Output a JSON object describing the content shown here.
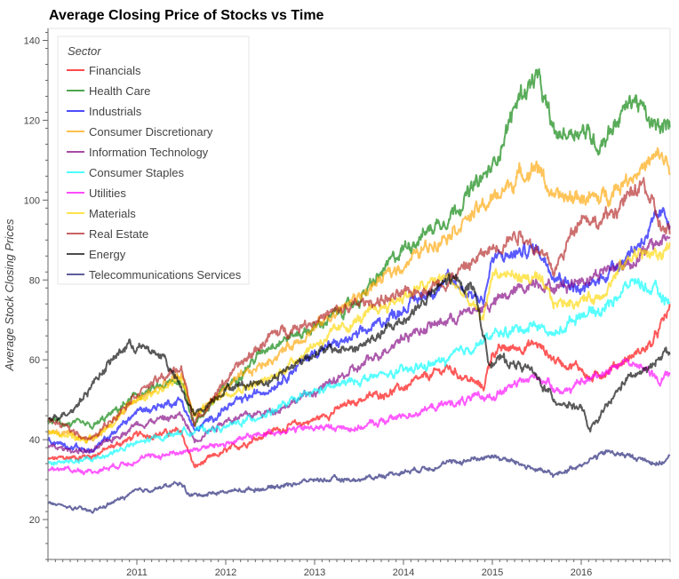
{
  "chart_data": {
    "type": "line",
    "title": "Average Closing Price of Stocks vs Time",
    "xlabel": "",
    "ylabel": "Average Stock Closing Prices",
    "xlim": [
      2010.0,
      2017.0
    ],
    "ylim": [
      10,
      143
    ],
    "x_ticks": [
      "2011",
      "2012",
      "2013",
      "2014",
      "2015",
      "2016"
    ],
    "y_ticks": [
      20,
      40,
      60,
      80,
      100,
      120,
      140
    ],
    "grid": false,
    "legend": {
      "title": "Sector",
      "placement": "top-left"
    },
    "series": [
      {
        "name": "Financials",
        "color": "#ff0000",
        "x": [
          2010.0,
          2010.5,
          2011.0,
          2011.5,
          2011.65,
          2011.8,
          2012.0,
          2012.5,
          2013.0,
          2013.5,
          2014.0,
          2014.5,
          2014.9,
          2015.0,
          2015.5,
          2015.7,
          2016.0,
          2016.1,
          2016.5,
          2016.8,
          2017.0
        ],
        "values": [
          35,
          36,
          41,
          42,
          33,
          35,
          37,
          42,
          45,
          50,
          53,
          58,
          53,
          62,
          64,
          60,
          58,
          55,
          60,
          64,
          73
        ]
      },
      {
        "name": "Health Care",
        "color": "#008000",
        "x": [
          2010.0,
          2010.5,
          2011.0,
          2011.5,
          2011.65,
          2012.0,
          2012.5,
          2013.0,
          2013.5,
          2014.0,
          2014.5,
          2015.0,
          2015.3,
          2015.5,
          2015.7,
          2016.0,
          2016.2,
          2016.6,
          2016.8,
          2017.0
        ],
        "values": [
          45,
          43,
          51,
          55,
          44,
          53,
          64,
          68,
          75,
          88,
          96,
          108,
          126,
          131,
          116,
          118,
          114,
          126,
          118,
          118
        ]
      },
      {
        "name": "Industrials",
        "color": "#0000ff",
        "x": [
          2010.0,
          2010.5,
          2011.0,
          2011.5,
          2011.65,
          2012.0,
          2012.5,
          2013.0,
          2013.5,
          2014.0,
          2014.5,
          2014.9,
          2015.0,
          2015.5,
          2015.7,
          2016.0,
          2016.2,
          2016.6,
          2016.9,
          2017.0
        ],
        "values": [
          40,
          37,
          47,
          50,
          42,
          48,
          53,
          62,
          66,
          73,
          80,
          75,
          85,
          88,
          82,
          77,
          80,
          88,
          96,
          95
        ]
      },
      {
        "name": "Consumer Discretionary",
        "color": "#ffa500",
        "x": [
          2010.0,
          2010.5,
          2011.0,
          2011.5,
          2011.65,
          2012.0,
          2012.5,
          2013.0,
          2013.5,
          2014.0,
          2014.5,
          2015.0,
          2015.3,
          2015.5,
          2015.7,
          2016.0,
          2016.2,
          2016.6,
          2016.9,
          2017.0
        ],
        "values": [
          42,
          40,
          50,
          56,
          46,
          53,
          60,
          68,
          76,
          84,
          92,
          100,
          106,
          109,
          100,
          101,
          100,
          107,
          111,
          108
        ]
      },
      {
        "name": "Information Technology",
        "color": "#800080",
        "x": [
          2010.0,
          2010.5,
          2011.0,
          2011.5,
          2011.65,
          2012.0,
          2012.5,
          2013.0,
          2013.5,
          2014.0,
          2014.5,
          2015.0,
          2015.5,
          2015.7,
          2016.0,
          2016.2,
          2016.6,
          2016.9,
          2017.0
        ],
        "values": [
          38,
          37,
          44,
          46,
          40,
          45,
          47,
          52,
          58,
          66,
          70,
          74,
          80,
          78,
          80,
          82,
          85,
          90,
          91
        ]
      },
      {
        "name": "Consumer Staples",
        "color": "#00ffff",
        "x": [
          2010.0,
          2010.5,
          2011.0,
          2011.5,
          2012.0,
          2012.5,
          2013.0,
          2013.5,
          2014.0,
          2014.5,
          2015.0,
          2015.5,
          2015.7,
          2016.0,
          2016.2,
          2016.6,
          2016.9,
          2017.0
        ],
        "values": [
          34,
          35,
          39,
          42,
          43,
          47,
          52,
          55,
          57,
          60,
          66,
          69,
          66,
          72,
          72,
          80,
          76,
          74
        ]
      },
      {
        "name": "Utilities",
        "color": "#ff00ff",
        "x": [
          2010.0,
          2010.5,
          2011.0,
          2011.5,
          2012.0,
          2012.5,
          2013.0,
          2013.5,
          2014.0,
          2014.5,
          2015.0,
          2015.5,
          2015.8,
          2016.0,
          2016.5,
          2016.9,
          2017.0
        ],
        "values": [
          33,
          32,
          35,
          37,
          39,
          42,
          43,
          43,
          46,
          49,
          51,
          56,
          52,
          54,
          60,
          55,
          57
        ]
      },
      {
        "name": "Materials",
        "color": "#ffd700",
        "x": [
          2010.0,
          2010.5,
          2011.0,
          2011.5,
          2011.65,
          2012.0,
          2012.5,
          2013.0,
          2013.5,
          2014.0,
          2014.5,
          2014.9,
          2015.0,
          2015.5,
          2015.7,
          2016.0,
          2016.2,
          2016.6,
          2016.9,
          2017.0
        ],
        "values": [
          42,
          40,
          50,
          55,
          46,
          52,
          55,
          64,
          70,
          76,
          81,
          70,
          82,
          80,
          74,
          75,
          76,
          87,
          86,
          90
        ]
      },
      {
        "name": "Real Estate",
        "color": "#b22222",
        "x": [
          2010.0,
          2010.5,
          2011.0,
          2011.5,
          2011.65,
          2012.0,
          2012.5,
          2013.0,
          2013.5,
          2014.0,
          2014.5,
          2015.0,
          2015.3,
          2015.5,
          2015.7,
          2016.0,
          2016.2,
          2016.5,
          2016.7,
          2016.9,
          2017.0
        ],
        "values": [
          45,
          40,
          52,
          58,
          44,
          55,
          66,
          70,
          74,
          76,
          80,
          88,
          92,
          88,
          82,
          97,
          94,
          100,
          104,
          93,
          91
        ]
      },
      {
        "name": "Energy",
        "color": "#000000",
        "x": [
          2010.0,
          2010.3,
          2010.6,
          2010.9,
          2011.3,
          2011.65,
          2012.0,
          2012.5,
          2013.0,
          2013.5,
          2014.0,
          2014.5,
          2014.8,
          2014.95,
          2015.1,
          2015.4,
          2015.7,
          2016.0,
          2016.1,
          2016.5,
          2016.8,
          2016.9,
          2017.0
        ],
        "values": [
          45,
          48,
          57,
          64,
          61,
          46,
          53,
          55,
          62,
          63,
          70,
          80,
          78,
          60,
          60,
          58,
          50,
          48,
          42,
          55,
          58,
          62,
          62
        ]
      },
      {
        "name": "Telecommunications Services",
        "color": "#191970",
        "x": [
          2010.0,
          2010.5,
          2011.0,
          2011.5,
          2011.6,
          2012.0,
          2012.5,
          2013.0,
          2013.5,
          2014.0,
          2014.5,
          2015.0,
          2015.3,
          2015.7,
          2016.0,
          2016.3,
          2016.5,
          2016.9,
          2017.0
        ],
        "values": [
          24,
          22,
          27,
          29,
          26,
          27,
          28,
          30,
          30,
          32,
          34,
          36,
          34,
          31,
          34,
          37,
          36,
          34,
          36
        ]
      }
    ]
  }
}
